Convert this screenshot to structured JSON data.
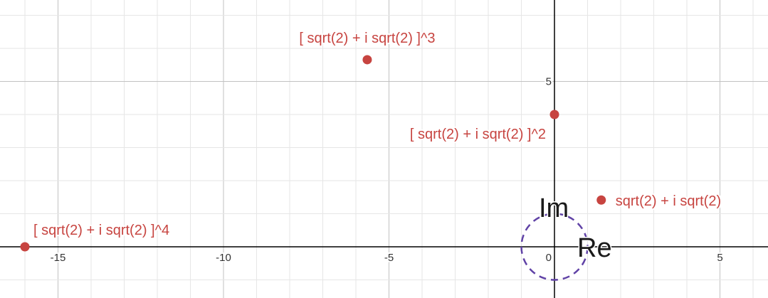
{
  "chart_data": {
    "type": "scatter",
    "title": "",
    "xlabel": "Re",
    "ylabel": "Im",
    "xlim": [
      -16.7,
      6.5
    ],
    "ylim": [
      -1.5,
      7.5
    ],
    "grid": true,
    "minor_step": 1,
    "major_step": 5,
    "x_ticks": [
      -15,
      -10,
      -5,
      0,
      5
    ],
    "y_ticks": [
      5
    ],
    "point_color": "#c74440",
    "circle_color": "#6042a6",
    "points": [
      {
        "x": 1.414,
        "y": 1.414,
        "label": "sqrt(2) + i sqrt(2)"
      },
      {
        "x": 0,
        "y": 4,
        "label": "[ sqrt(2) + i sqrt(2) ]^2"
      },
      {
        "x": -5.657,
        "y": 5.657,
        "label": "[ sqrt(2) + i sqrt(2) ]^3"
      },
      {
        "x": -16,
        "y": 0,
        "label": "[ sqrt(2) + i sqrt(2) ]^4"
      }
    ],
    "circle": {
      "cx": 0,
      "cy": 0,
      "r": 1
    }
  }
}
